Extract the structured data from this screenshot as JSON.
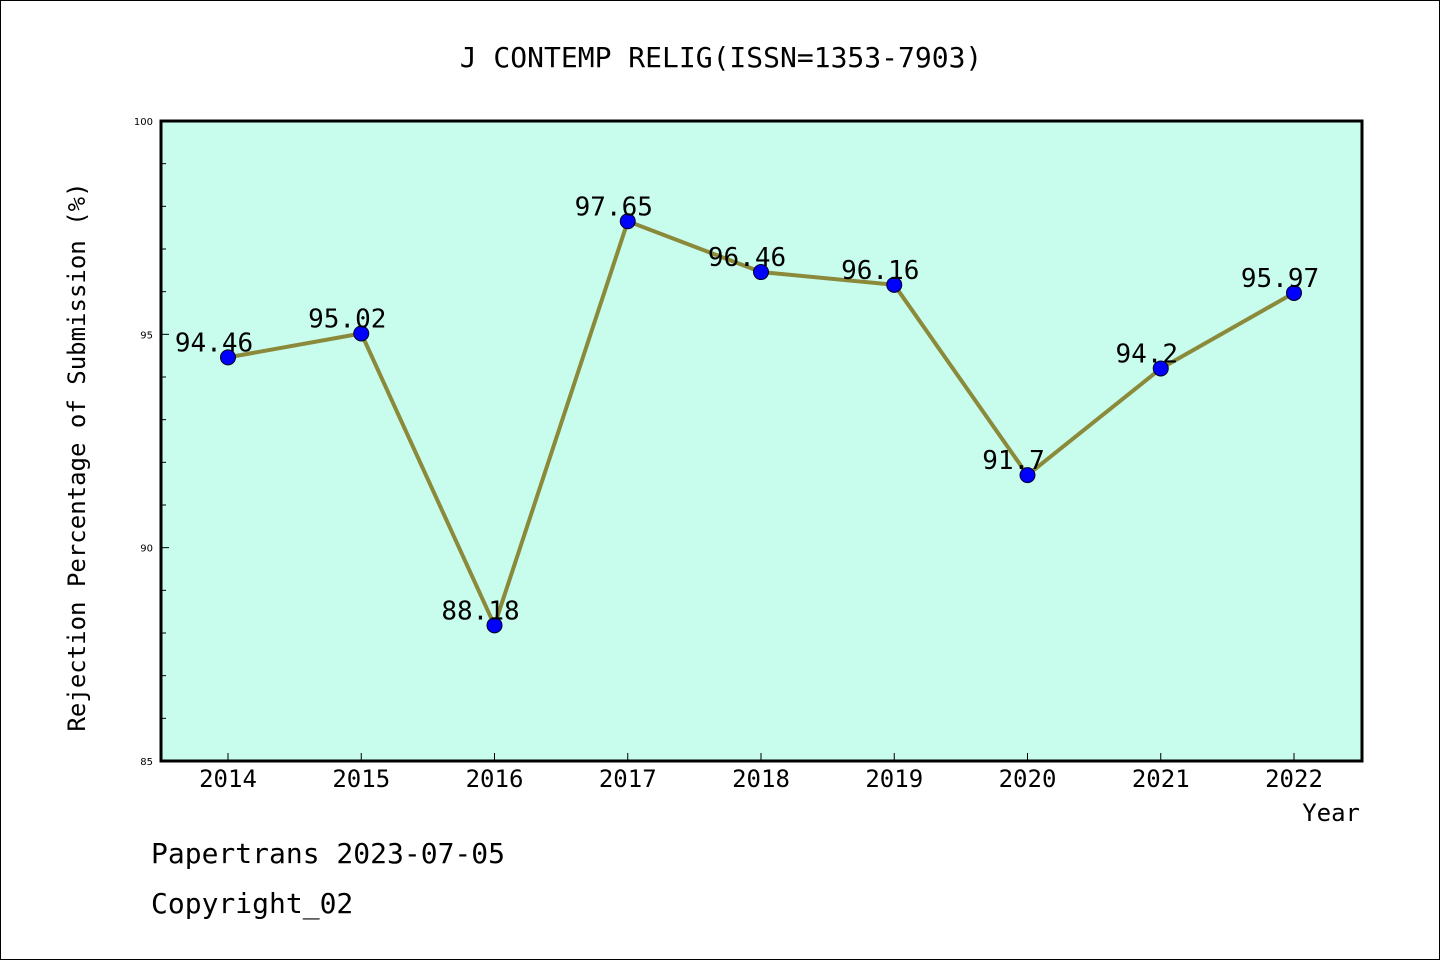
{
  "chart_data": {
    "type": "line",
    "title": "J CONTEMP RELIG(ISSN=1353-7903)",
    "xlabel": "Year",
    "ylabel": "Rejection Percentage of Submission (%)",
    "categories": [
      "2014",
      "2015",
      "2016",
      "2017",
      "2018",
      "2019",
      "2020",
      "2021",
      "2022"
    ],
    "values": [
      94.46,
      95.02,
      88.18,
      97.65,
      96.46,
      96.16,
      91.7,
      94.2,
      95.97
    ],
    "data_labels": [
      "94.46",
      "95.02",
      "88.18",
      "97.65",
      "96.46",
      "96.16",
      "91.7",
      "94.2",
      "95.97"
    ],
    "ylim": [
      85,
      100
    ],
    "y_ticks": [
      "85",
      "90",
      "95",
      "100"
    ],
    "grid": false,
    "colors": {
      "plot_background": "#c8fced",
      "line": "#8b8a3a",
      "marker": "#0000ff"
    }
  },
  "footer": {
    "line1": "Papertrans 2023-07-05",
    "line2": "Copyright_02"
  }
}
